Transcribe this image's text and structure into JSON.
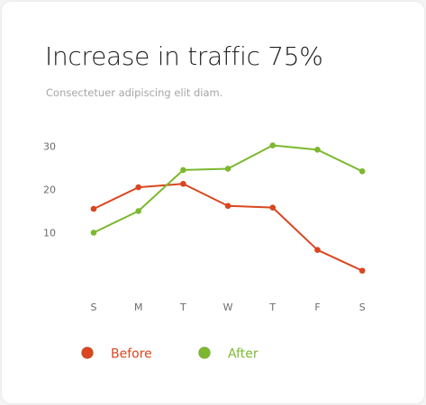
{
  "chart_data": {
    "type": "line",
    "title": "Increase in traffic 75%",
    "subtitle": "Consectetuer adipiscing elit diam.",
    "categories": [
      "S",
      "M",
      "T",
      "W",
      "T",
      "F",
      "S"
    ],
    "y_ticks": [
      "10",
      "20",
      "30"
    ],
    "ylim": [
      0,
      32
    ],
    "grid": false,
    "legend_position": "bottom-left",
    "series": [
      {
        "name": "Before",
        "color": "#d9461f",
        "values": [
          15.5,
          20.5,
          21.3,
          16.2,
          15.8,
          6,
          1.2
        ]
      },
      {
        "name": "After",
        "color": "#7cb82f",
        "values": [
          10,
          15,
          24.5,
          24.8,
          30.2,
          29.2,
          24.2
        ]
      }
    ]
  }
}
